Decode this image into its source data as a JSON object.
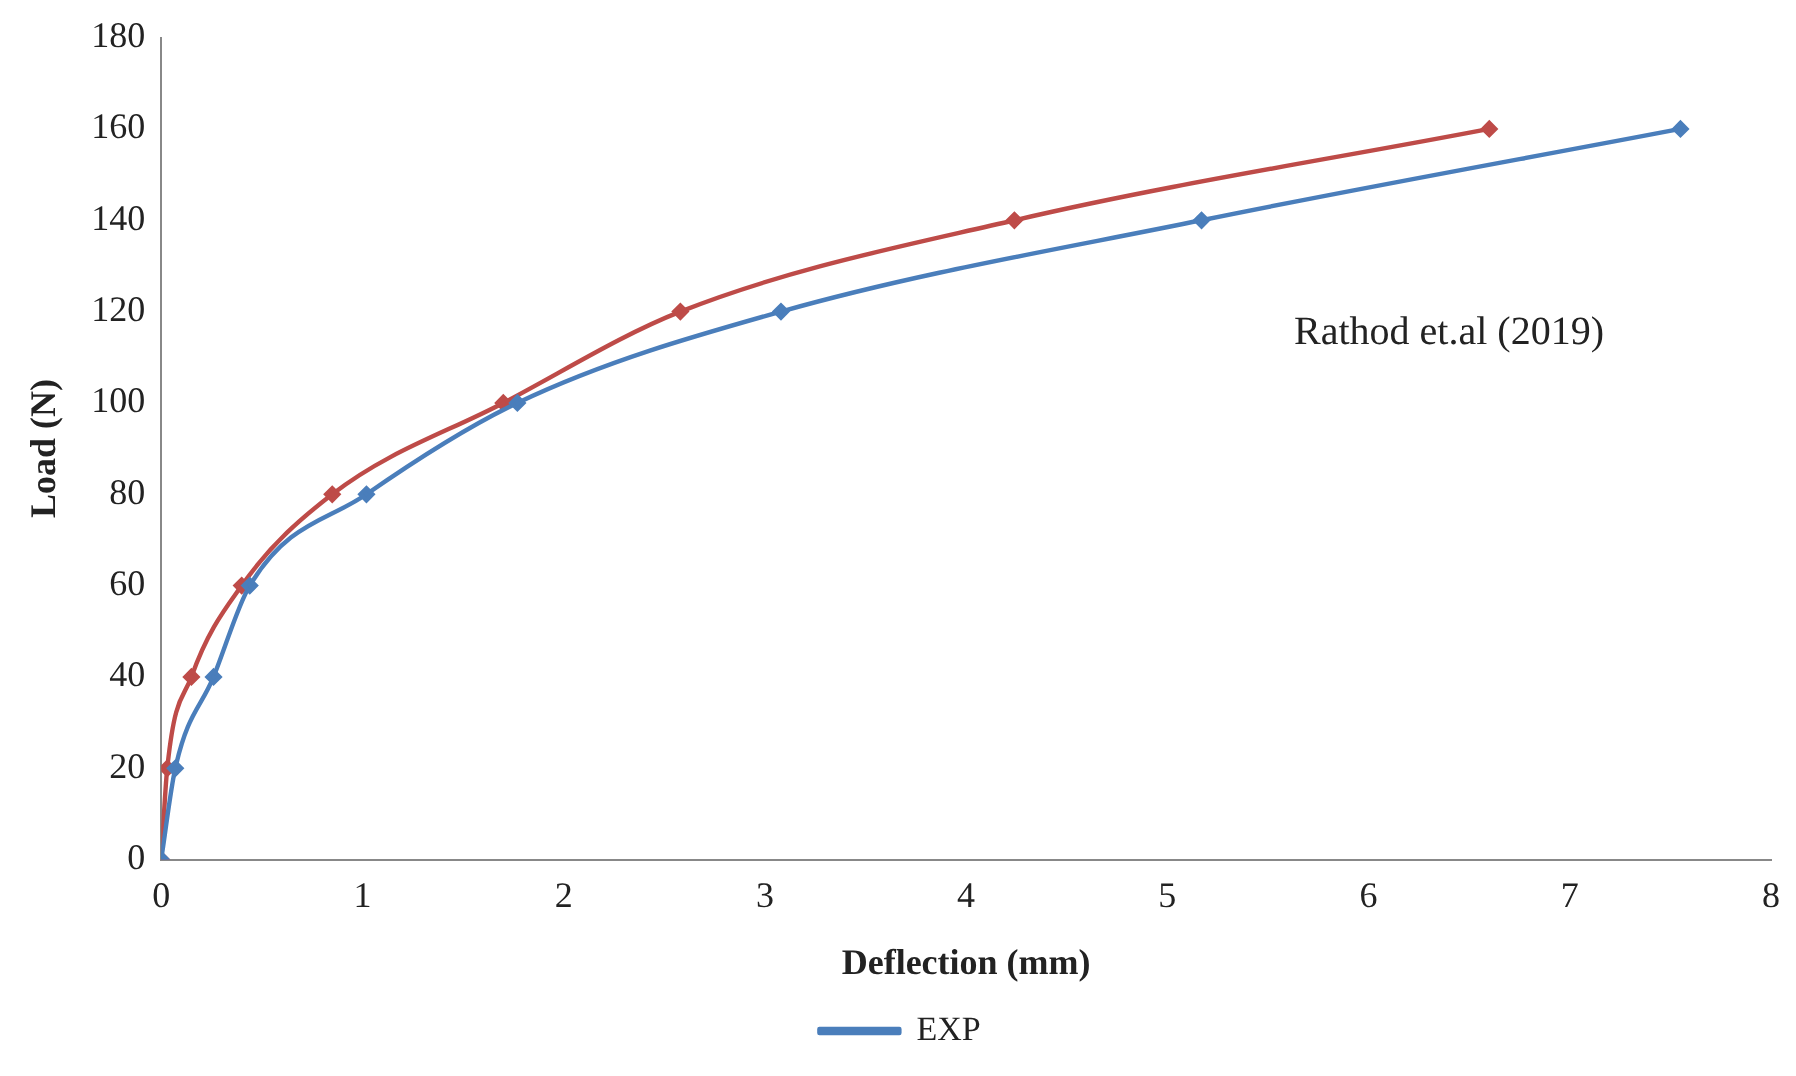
{
  "chart_data": {
    "type": "line",
    "xlabel": "Deflection (mm)",
    "ylabel": "Load (N)",
    "annotations": [
      "Rathod et.al (2019)"
    ],
    "series": [
      {
        "name": "EXP",
        "color": "#4a7ebb",
        "x": [
          0,
          0.07,
          0.26,
          0.44,
          1.02,
          1.77,
          3.08,
          5.17,
          7.55
        ],
        "values": [
          0,
          20,
          40,
          60,
          80,
          100,
          120,
          140,
          160
        ]
      },
      {
        "color": "#be4b48",
        "x": [
          0,
          0.03,
          0.15,
          0.4,
          0.85,
          1.7,
          2.58,
          4.24,
          6.6
        ],
        "values": [
          0,
          20,
          40,
          60,
          80,
          100,
          120,
          140,
          160
        ]
      }
    ],
    "xlim": [
      0,
      8
    ],
    "xticks": [
      0,
      1,
      2,
      3,
      4,
      5,
      6,
      7,
      8
    ],
    "ylim": [
      0,
      180
    ],
    "yticks": [
      0,
      20,
      40,
      60,
      80,
      100,
      120,
      140,
      160,
      180
    ],
    "grid": false,
    "legend": "bottom",
    "marker": "diamond",
    "line_style": "solid"
  }
}
